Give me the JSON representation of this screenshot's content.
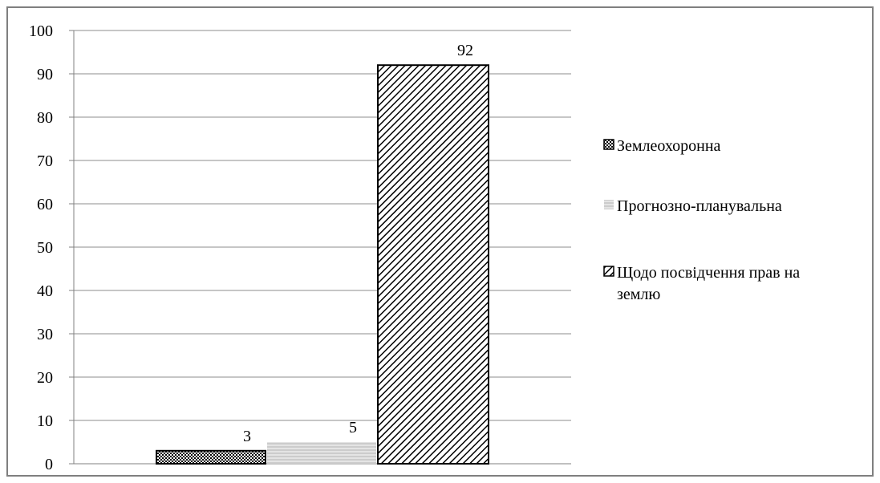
{
  "chart_data": {
    "type": "bar",
    "title": "",
    "xlabel": "",
    "ylabel": "",
    "ylim": [
      0,
      100
    ],
    "yticks": [
      0,
      10,
      20,
      30,
      40,
      50,
      60,
      70,
      80,
      90,
      100
    ],
    "grid": true,
    "legend_position": "right",
    "series": [
      {
        "name": "Землеохоронна",
        "value": 3,
        "data_label": "3",
        "pattern": "dense-dots",
        "color": "#000000"
      },
      {
        "name": "Прогнозно-планувальна",
        "value": 5,
        "data_label": "5",
        "pattern": "light-horizontal",
        "color": "#9a9a9a"
      },
      {
        "name": "Щодо посвідчення прав на землю",
        "value": 92,
        "data_label": "92",
        "pattern": "diagonal",
        "color": "#000000"
      }
    ],
    "legend": {
      "items": [
        {
          "lines": [
            "Землеохоронна"
          ]
        },
        {
          "lines": [
            "Прогнозно-планувальна"
          ]
        },
        {
          "lines": [
            "Щодо посвідчення прав на",
            "землю"
          ]
        }
      ]
    }
  }
}
